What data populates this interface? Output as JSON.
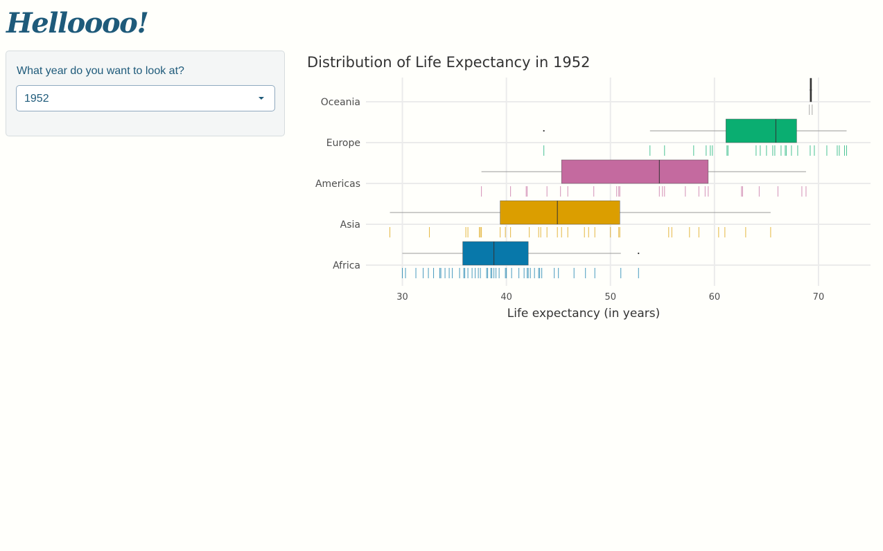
{
  "app": {
    "title": "Helloooo!"
  },
  "sidebar": {
    "select_label": "What year do you want to look at?",
    "select_value": "1952"
  },
  "chart_data": {
    "type": "boxplot",
    "title": "Distribution of Life Expectancy in 1952",
    "xlabel": "Life expectancy (in years)",
    "ylabel": "",
    "xlim": [
      26.5,
      75
    ],
    "xticks": [
      30,
      40,
      50,
      60,
      70
    ],
    "grid": true,
    "categories": [
      "Oceania",
      "Europe",
      "Americas",
      "Asia",
      "Africa"
    ],
    "colors": {
      "Oceania": "#8c8c8c",
      "Europe": "#0aae71",
      "Americas": "#c46a9f",
      "Asia": "#db9e00",
      "Africa": "#0878aa"
    },
    "boxes": [
      {
        "category": "Oceania",
        "min": 69.12,
        "q1": 69.2,
        "median": 69.26,
        "q3": 69.33,
        "max": 69.39,
        "outliers": []
      },
      {
        "category": "Europe",
        "min": 53.8,
        "q1": 61.1,
        "median": 65.9,
        "q3": 67.9,
        "max": 72.7,
        "outliers": [
          43.6
        ]
      },
      {
        "category": "Americas",
        "min": 37.6,
        "q1": 45.3,
        "median": 54.7,
        "q3": 59.4,
        "max": 68.8,
        "outliers": []
      },
      {
        "category": "Asia",
        "min": 28.8,
        "q1": 39.4,
        "median": 44.9,
        "q3": 50.9,
        "max": 65.4,
        "outliers": []
      },
      {
        "category": "Africa",
        "min": 30.0,
        "q1": 35.8,
        "median": 38.8,
        "q3": 42.1,
        "max": 51.0,
        "outliers": [
          52.7
        ]
      }
    ],
    "rug": {
      "Oceania": [
        69.12,
        69.39
      ],
      "Europe": [
        43.6,
        53.8,
        55.2,
        58.0,
        59.2,
        59.6,
        59.8,
        61.2,
        61.3,
        64.0,
        64.4,
        65.0,
        65.6,
        65.8,
        66.4,
        66.8,
        66.9,
        67.4,
        68.0,
        69.2,
        69.6,
        70.8,
        71.8,
        72.0,
        72.5,
        72.7
      ],
      "Americas": [
        37.6,
        40.4,
        41.9,
        42.0,
        43.9,
        45.2,
        45.9,
        48.4,
        50.6,
        50.8,
        50.9,
        54.7,
        55.0,
        55.2,
        57.2,
        58.5,
        59.1,
        59.4,
        62.6,
        62.7,
        64.3,
        66.1,
        68.4,
        68.8
      ],
      "Asia": [
        28.8,
        32.6,
        36.1,
        36.3,
        37.4,
        37.5,
        37.6,
        39.4,
        39.9,
        40.4,
        42.2,
        43.1,
        43.3,
        43.9,
        44.9,
        45.3,
        45.9,
        47.5,
        47.9,
        48.5,
        50.0,
        50.8,
        50.9,
        55.6,
        55.9,
        57.6,
        58.5,
        60.4,
        61.0,
        63.0,
        65.4
      ],
      "Africa": [
        30.0,
        30.3,
        31.3,
        32.0,
        32.5,
        33.0,
        33.6,
        33.7,
        34.1,
        34.5,
        34.8,
        35.5,
        35.9,
        36.0,
        36.3,
        36.7,
        37.0,
        37.3,
        37.5,
        38.1,
        38.2,
        38.5,
        38.6,
        38.8,
        39.0,
        39.3,
        39.9,
        40.0,
        40.5,
        41.2,
        41.7,
        42.0,
        42.1,
        42.3,
        42.7,
        43.1,
        43.2,
        43.4,
        44.6,
        45.0,
        46.5,
        47.6,
        48.5,
        51.0,
        52.7
      ]
    }
  }
}
